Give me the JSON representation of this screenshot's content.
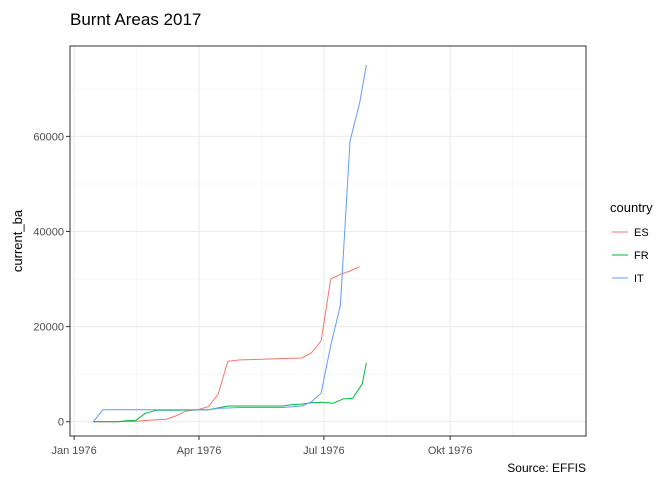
{
  "chart_data": {
    "type": "line",
    "title": "Burnt Areas 2017",
    "subtitle": "",
    "xlabel": "",
    "ylabel": "current_ba",
    "caption": "Source: EFFIS",
    "x_ticks": [
      "1976-01-01",
      "1976-04-01",
      "1976-07-01",
      "1976-10-01"
    ],
    "x_tick_labels": [
      "Jan 1976",
      "Apr 1976",
      "Jul 1976",
      "Okt 1976"
    ],
    "y_ticks": [
      0,
      20000,
      40000,
      60000
    ],
    "y_tick_labels": [
      "0",
      "20000",
      "40000",
      "60000"
    ],
    "ylim": [
      -3000,
      79000
    ],
    "xlim": [
      "1975-12-29",
      "1977-01-08"
    ],
    "grid": true,
    "legend": {
      "title": "country",
      "position": "right"
    },
    "series": [
      {
        "name": "ES",
        "color": "#F8766D",
        "points": [
          [
            "1976-01-15",
            0
          ],
          [
            "1976-02-01",
            0
          ],
          [
            "1976-02-15",
            100
          ],
          [
            "1976-02-22",
            250
          ],
          [
            "1976-03-01",
            400
          ],
          [
            "1976-03-08",
            500
          ],
          [
            "1976-03-15",
            1200
          ],
          [
            "1976-03-22",
            2200
          ],
          [
            "1976-04-01",
            2600
          ],
          [
            "1976-04-08",
            3200
          ],
          [
            "1976-04-15",
            5800
          ],
          [
            "1976-04-22",
            12700
          ],
          [
            "1976-05-01",
            13000
          ],
          [
            "1976-05-15",
            13100
          ],
          [
            "1976-06-01",
            13300
          ],
          [
            "1976-06-15",
            13400
          ],
          [
            "1976-06-22",
            14500
          ],
          [
            "1976-06-29",
            17000
          ],
          [
            "1976-07-06",
            30000
          ],
          [
            "1976-07-13",
            31000
          ],
          [
            "1976-07-20",
            31700
          ],
          [
            "1976-07-27",
            32600
          ]
        ]
      },
      {
        "name": "FR",
        "color": "#00BA38",
        "points": [
          [
            "1976-01-15",
            0
          ],
          [
            "1976-02-01",
            0
          ],
          [
            "1976-02-08",
            200
          ],
          [
            "1976-02-15",
            300
          ],
          [
            "1976-02-22",
            1800
          ],
          [
            "1976-03-01",
            2400
          ],
          [
            "1976-03-08",
            2400
          ],
          [
            "1976-03-15",
            2400
          ],
          [
            "1976-03-22",
            2450
          ],
          [
            "1976-03-29",
            2500
          ],
          [
            "1976-04-08",
            2500
          ],
          [
            "1976-04-15",
            2900
          ],
          [
            "1976-04-22",
            3300
          ],
          [
            "1976-05-08",
            3300
          ],
          [
            "1976-05-22",
            3300
          ],
          [
            "1976-06-01",
            3300
          ],
          [
            "1976-06-08",
            3600
          ],
          [
            "1976-06-15",
            3700
          ],
          [
            "1976-06-22",
            4000
          ],
          [
            "1976-06-29",
            4100
          ],
          [
            "1976-07-08",
            3900
          ],
          [
            "1976-07-15",
            4800
          ],
          [
            "1976-07-22",
            4900
          ],
          [
            "1976-07-29",
            8000
          ],
          [
            "1976-08-01",
            12400
          ]
        ]
      },
      {
        "name": "IT",
        "color": "#619CFF",
        "points": [
          [
            "1976-01-15",
            0
          ],
          [
            "1976-01-22",
            2500
          ],
          [
            "1976-02-01",
            2500
          ],
          [
            "1976-02-15",
            2500
          ],
          [
            "1976-03-01",
            2500
          ],
          [
            "1976-03-15",
            2500
          ],
          [
            "1976-04-01",
            2500
          ],
          [
            "1976-04-08",
            2500
          ],
          [
            "1976-04-15",
            2800
          ],
          [
            "1976-05-01",
            3000
          ],
          [
            "1976-05-15",
            3000
          ],
          [
            "1976-06-01",
            3000
          ],
          [
            "1976-06-15",
            3300
          ],
          [
            "1976-06-22",
            4200
          ],
          [
            "1976-06-29",
            6000
          ],
          [
            "1976-07-06",
            16000
          ],
          [
            "1976-07-13",
            24500
          ],
          [
            "1976-07-20",
            59000
          ],
          [
            "1976-07-27",
            67000
          ],
          [
            "1976-08-01",
            75000
          ]
        ]
      }
    ]
  }
}
